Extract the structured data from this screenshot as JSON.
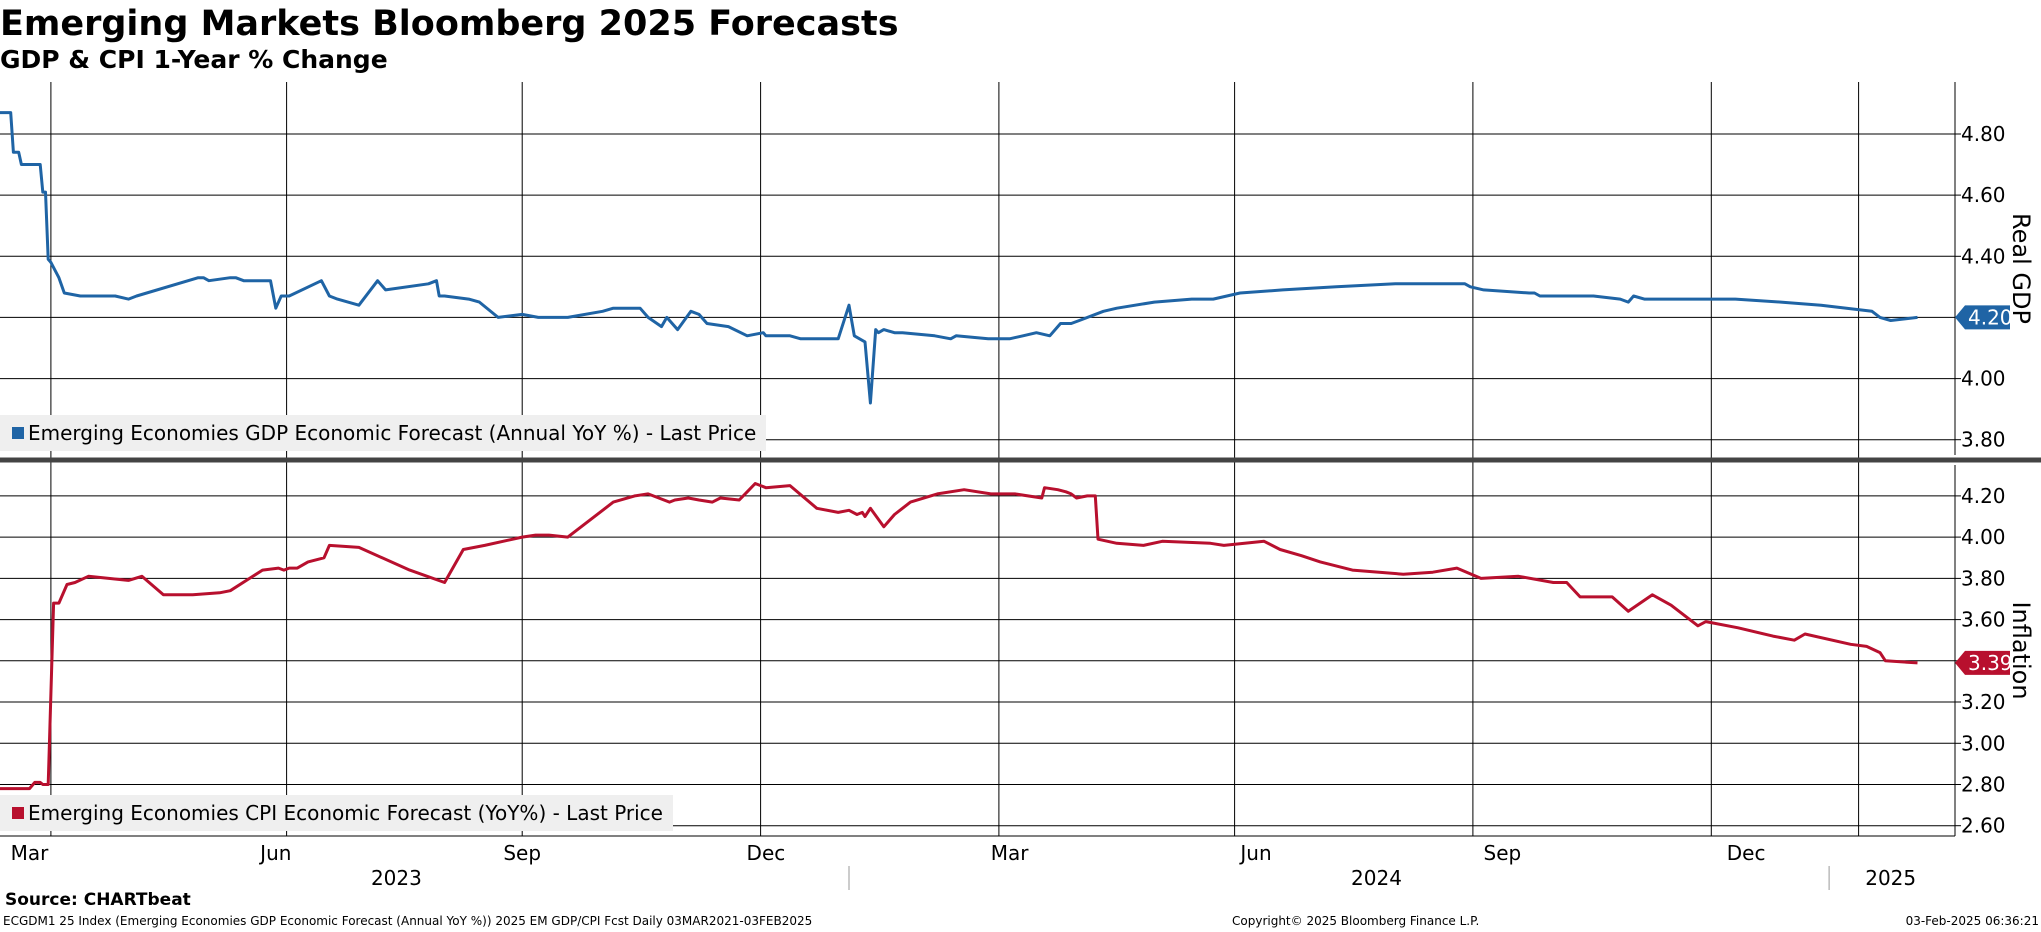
{
  "header": {
    "title": "Emerging Markets Bloomberg 2025 Forecasts",
    "subtitle": "GDP & CPI 1-Year % Change"
  },
  "footer": {
    "source": "Source: CHARTbeat",
    "left": "ECGDM1 25 Index (Emerging Economies GDP Economic Forecast (Annual YoY %)) 2025 EM GDP/CPI Fcst  Daily 03MAR2021-03FEB2025",
    "center": "Copyright© 2025 Bloomberg Finance L.P.",
    "right": "03-Feb-2025 06:36:21"
  },
  "colors": {
    "gdp": "#1f64a5",
    "cpi": "#b8102e",
    "grid": "#000000",
    "divider": "#444444"
  },
  "chart_data": [
    {
      "type": "line",
      "panel": "top",
      "ylabel": "Real GDP",
      "ylim": [
        3.75,
        4.97
      ],
      "yticks": [
        3.8,
        4.0,
        4.2,
        4.4,
        4.6,
        4.8
      ],
      "ytick_labels": [
        "3.80",
        "4.00",
        "4.20",
        "4.40",
        "4.60",
        "4.80"
      ],
      "last_value_label": "4.20",
      "series": [
        {
          "name": "Emerging Economies GDP Economic Forecast (Annual YoY %) - Last Price",
          "color_key": "gdp",
          "x": [
            "2023-02-18",
            "2023-02-22",
            "2023-02-23",
            "2023-02-25",
            "2023-02-26",
            "2023-03-05",
            "2023-03-06",
            "2023-03-07",
            "2023-03-08",
            "2023-03-09",
            "2023-03-12",
            "2023-03-14",
            "2023-03-20",
            "2023-04-02",
            "2023-04-07",
            "2023-04-10",
            "2023-05-03",
            "2023-05-05",
            "2023-05-07",
            "2023-05-15",
            "2023-05-17",
            "2023-05-20",
            "2023-05-24",
            "2023-05-30",
            "2023-06-01",
            "2023-06-03",
            "2023-06-06",
            "2023-06-18",
            "2023-06-21",
            "2023-06-24",
            "2023-07-02",
            "2023-07-09",
            "2023-07-12",
            "2023-07-28",
            "2023-07-31",
            "2023-08-01",
            "2023-08-03",
            "2023-08-12",
            "2023-08-16",
            "2023-08-23",
            "2023-09-01",
            "2023-09-07",
            "2023-09-18",
            "2023-10-01",
            "2023-10-05",
            "2023-10-15",
            "2023-10-18",
            "2023-10-23",
            "2023-10-25",
            "2023-10-29",
            "2023-11-03",
            "2023-11-06",
            "2023-11-09",
            "2023-11-17",
            "2023-11-24",
            "2023-11-30",
            "2023-12-01",
            "2023-12-10",
            "2023-12-14",
            "2023-12-20",
            "2023-12-28",
            "2024-01-01",
            "2024-01-03",
            "2024-01-07",
            "2024-01-09",
            "2024-01-11",
            "2024-01-12",
            "2024-01-14",
            "2024-01-18",
            "2024-01-21",
            "2024-02-02",
            "2024-02-08",
            "2024-02-10",
            "2024-02-22",
            "2024-03-01",
            "2024-03-06",
            "2024-03-11",
            "2024-03-16",
            "2024-03-20",
            "2024-03-24",
            "2024-03-27",
            "2024-04-05",
            "2024-04-10",
            "2024-04-24",
            "2024-05-08",
            "2024-05-16",
            "2024-05-26",
            "2024-06-11",
            "2024-07-01",
            "2024-07-23",
            "2024-08-18",
            "2024-08-20",
            "2024-08-25",
            "2024-09-11",
            "2024-09-13",
            "2024-09-15",
            "2024-10-05",
            "2024-10-15",
            "2024-10-18",
            "2024-10-20",
            "2024-10-24",
            "2024-11-10",
            "2024-11-17",
            "2024-11-27",
            "2024-12-14",
            "2024-12-29",
            "2025-01-17",
            "2025-01-20",
            "2025-01-24",
            "2025-02-03"
          ],
          "y": [
            4.87,
            4.87,
            4.74,
            4.74,
            4.7,
            4.7,
            4.61,
            4.61,
            4.39,
            4.38,
            4.33,
            4.28,
            4.27,
            4.27,
            4.26,
            4.27,
            4.33,
            4.33,
            4.32,
            4.33,
            4.33,
            4.32,
            4.32,
            4.32,
            4.23,
            4.27,
            4.27,
            4.32,
            4.27,
            4.26,
            4.24,
            4.32,
            4.29,
            4.31,
            4.32,
            4.27,
            4.27,
            4.26,
            4.25,
            4.2,
            4.21,
            4.2,
            4.2,
            4.22,
            4.23,
            4.23,
            4.2,
            4.17,
            4.2,
            4.16,
            4.22,
            4.21,
            4.18,
            4.17,
            4.14,
            4.15,
            4.14,
            4.14,
            4.13,
            4.13,
            4.13,
            4.24,
            4.14,
            4.12,
            3.92,
            4.16,
            4.15,
            4.16,
            4.15,
            4.15,
            4.14,
            4.13,
            4.14,
            4.13,
            4.13,
            4.14,
            4.15,
            4.14,
            4.18,
            4.18,
            4.19,
            4.22,
            4.23,
            4.25,
            4.26,
            4.26,
            4.28,
            4.29,
            4.3,
            4.31,
            4.31,
            4.3,
            4.29,
            4.28,
            4.28,
            4.27,
            4.27,
            4.26,
            4.25,
            4.27,
            4.26,
            4.26,
            4.26,
            4.26,
            4.25,
            4.24,
            4.22,
            4.2,
            4.19,
            4.2
          ]
        }
      ]
    },
    {
      "type": "line",
      "panel": "bottom",
      "ylabel": "Inflation",
      "ylim": [
        2.55,
        4.35
      ],
      "yticks": [
        2.6,
        2.8,
        3.0,
        3.2,
        3.4,
        3.6,
        3.8,
        4.0,
        4.2
      ],
      "ytick_labels": [
        "2.60",
        "2.80",
        "3.00",
        "3.20",
        "3.40",
        "3.60",
        "3.80",
        "4.00",
        "4.20"
      ],
      "last_value_label": "3.39",
      "series": [
        {
          "name": "Emerging Economies CPI Economic Forecast (YoY%) - Last Price",
          "color_key": "cpi",
          "x": [
            "2023-02-18",
            "2023-03-01",
            "2023-03-03",
            "2023-03-05",
            "2023-03-06",
            "2023-03-08",
            "2023-03-10",
            "2023-03-12",
            "2023-03-15",
            "2023-03-18",
            "2023-03-23",
            "2023-04-07",
            "2023-04-12",
            "2023-04-20",
            "2023-05-01",
            "2023-05-11",
            "2023-05-15",
            "2023-05-27",
            "2023-06-02",
            "2023-06-04",
            "2023-06-06",
            "2023-06-09",
            "2023-06-13",
            "2023-06-19",
            "2023-06-21",
            "2023-07-02",
            "2023-07-21",
            "2023-08-03",
            "2023-08-10",
            "2023-08-18",
            "2023-09-01",
            "2023-09-06",
            "2023-09-11",
            "2023-09-18",
            "2023-10-05",
            "2023-10-13",
            "2023-10-18",
            "2023-10-26",
            "2023-10-28",
            "2023-11-02",
            "2023-11-06",
            "2023-11-11",
            "2023-11-14",
            "2023-11-21",
            "2023-11-24",
            "2023-11-27",
            "2023-12-01",
            "2023-12-10",
            "2023-12-20",
            "2023-12-28",
            "2024-01-01",
            "2024-01-04",
            "2024-01-06",
            "2024-01-07",
            "2024-01-09",
            "2024-01-14",
            "2024-01-18",
            "2024-01-24",
            "2024-02-03",
            "2024-02-13",
            "2024-02-23",
            "2024-03-03",
            "2024-03-13",
            "2024-03-14",
            "2024-03-19",
            "2024-03-22",
            "2024-03-24",
            "2024-03-26",
            "2024-03-30",
            "2024-04-02",
            "2024-04-03",
            "2024-04-10",
            "2024-04-20",
            "2024-04-27",
            "2024-05-15",
            "2024-05-20",
            "2024-06-04",
            "2024-06-10",
            "2024-06-18",
            "2024-06-25",
            "2024-07-07",
            "2024-07-26",
            "2024-08-06",
            "2024-08-15",
            "2024-08-24",
            "2024-09-07",
            "2024-09-20",
            "2024-09-25",
            "2024-09-30",
            "2024-10-12",
            "2024-10-18",
            "2024-10-27",
            "2024-11-03",
            "2024-11-13",
            "2024-11-16",
            "2024-11-28",
            "2024-12-11",
            "2024-12-19",
            "2024-12-23",
            "2025-01-09",
            "2025-01-15",
            "2025-01-20",
            "2025-01-22",
            "2025-02-03"
          ],
          "y": [
            2.78,
            2.78,
            2.81,
            2.81,
            2.8,
            2.8,
            3.68,
            3.68,
            3.77,
            3.78,
            3.81,
            3.79,
            3.81,
            3.72,
            3.72,
            3.73,
            3.74,
            3.84,
            3.85,
            3.84,
            3.85,
            3.85,
            3.88,
            3.9,
            3.96,
            3.95,
            3.84,
            3.78,
            3.94,
            3.96,
            4.0,
            4.01,
            4.01,
            4.0,
            4.17,
            4.2,
            4.21,
            4.17,
            4.18,
            4.19,
            4.18,
            4.17,
            4.19,
            4.18,
            4.22,
            4.26,
            4.24,
            4.25,
            4.14,
            4.12,
            4.13,
            4.11,
            4.12,
            4.1,
            4.14,
            4.05,
            4.11,
            4.17,
            4.21,
            4.23,
            4.21,
            4.21,
            4.19,
            4.24,
            4.23,
            4.22,
            4.21,
            4.19,
            4.2,
            4.2,
            3.99,
            3.97,
            3.96,
            3.98,
            3.97,
            3.96,
            3.98,
            3.94,
            3.91,
            3.88,
            3.84,
            3.82,
            3.83,
            3.85,
            3.8,
            3.81,
            3.78,
            3.78,
            3.71,
            3.71,
            3.64,
            3.72,
            3.67,
            3.57,
            3.59,
            3.56,
            3.52,
            3.5,
            3.53,
            3.48,
            3.47,
            3.44,
            3.4,
            3.39
          ]
        }
      ]
    }
  ],
  "x_axis": {
    "months": [
      {
        "label": "Mar",
        "date": "2023-03-01"
      },
      {
        "label": "Jun",
        "date": "2023-06-01"
      },
      {
        "label": "Sep",
        "date": "2023-09-01"
      },
      {
        "label": "Dec",
        "date": "2023-12-01"
      },
      {
        "label": "Mar",
        "date": "2024-03-01"
      },
      {
        "label": "Jun",
        "date": "2024-06-01"
      },
      {
        "label": "Sep",
        "date": "2024-09-01"
      },
      {
        "label": "Dec",
        "date": "2024-12-01"
      }
    ],
    "years": [
      {
        "label": "2023",
        "date": "2023-07-16"
      },
      {
        "label": "2024",
        "date": "2024-07-16"
      },
      {
        "label": "2025",
        "date": "2025-01-24"
      }
    ],
    "year_boundaries": [
      "2024-01-01",
      "2025-01-01"
    ],
    "gridlines": [
      "2023-03-09",
      "2023-06-05",
      "2023-09-01",
      "2023-11-29",
      "2024-02-26",
      "2024-05-24",
      "2024-08-21",
      "2024-11-18",
      "2025-01-12"
    ]
  }
}
